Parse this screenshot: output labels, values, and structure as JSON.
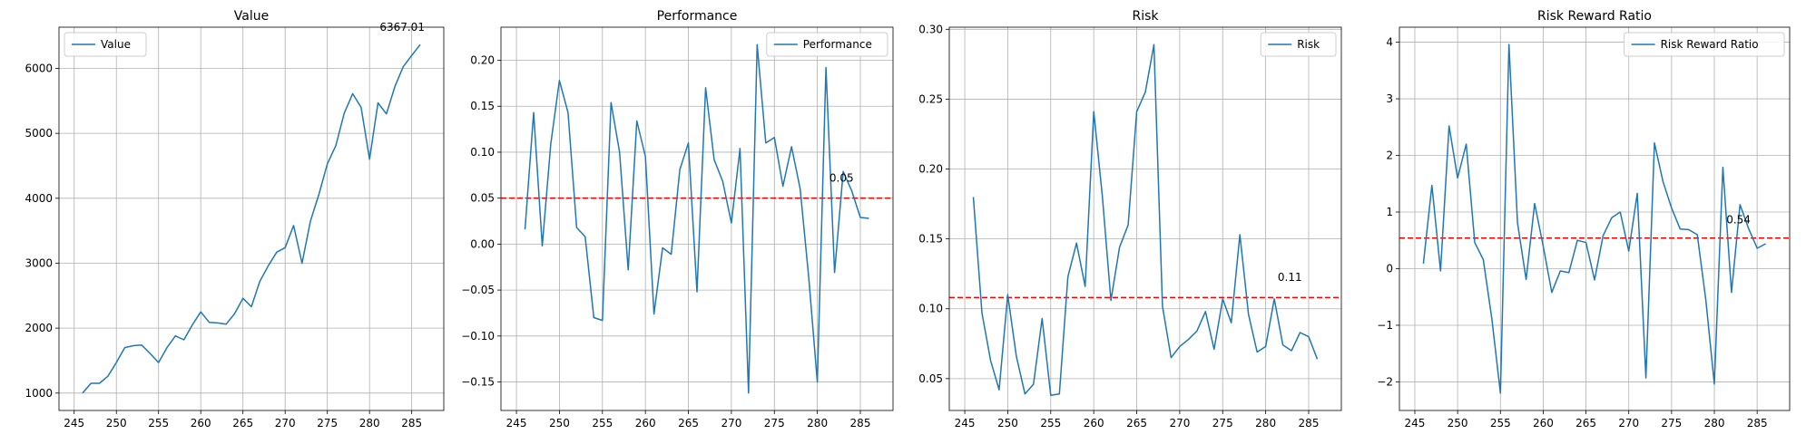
{
  "chart_data": [
    {
      "type": "line",
      "title": "Value",
      "xlabel": "",
      "ylabel": "",
      "x": [
        246,
        247,
        248,
        249,
        250,
        251,
        252,
        253,
        254,
        255,
        256,
        257,
        258,
        259,
        260,
        261,
        262,
        263,
        264,
        265,
        266,
        267,
        268,
        269,
        270,
        271,
        272,
        273,
        274,
        275,
        276,
        277,
        278,
        279,
        280,
        281,
        282,
        283,
        284,
        285,
        286
      ],
      "series": [
        {
          "name": "Value",
          "values": [
            1000,
            1150,
            1150,
            1260,
            1470,
            1700,
            1730,
            1740,
            1610,
            1470,
            1700,
            1880,
            1820,
            2050,
            2250,
            2090,
            2080,
            2060,
            2220,
            2460,
            2330,
            2720,
            2960,
            3170,
            3240,
            3580,
            3000,
            3650,
            4060,
            4530,
            4810,
            5310,
            5610,
            5400,
            4600,
            5470,
            5300,
            5720,
            6030,
            6200,
            6367.01
          ]
        }
      ],
      "xlim": [
        243.2,
        288.8
      ],
      "ylim": [
        732,
        6635
      ],
      "xticks": [
        245,
        250,
        255,
        260,
        265,
        270,
        275,
        280,
        285
      ],
      "yticks": [
        1000,
        2000,
        3000,
        4000,
        5000,
        6000
      ],
      "hline": null,
      "annotation": {
        "text": "6367.01",
        "x": 281.2,
        "y": 6580
      },
      "legend": "upper left",
      "grid": true
    },
    {
      "type": "line",
      "title": "Performance",
      "xlabel": "",
      "ylabel": "",
      "x": [
        246,
        247,
        248,
        249,
        250,
        251,
        252,
        253,
        254,
        255,
        256,
        257,
        258,
        259,
        260,
        261,
        262,
        263,
        264,
        265,
        266,
        267,
        268,
        269,
        270,
        271,
        272,
        273,
        274,
        275,
        276,
        277,
        278,
        279,
        280,
        281,
        282,
        283,
        284,
        285,
        286
      ],
      "series": [
        {
          "name": "Performance",
          "values": [
            0.016,
            0.143,
            -0.002,
            0.109,
            0.178,
            0.143,
            0.018,
            0.008,
            -0.08,
            -0.083,
            0.154,
            0.1,
            -0.028,
            0.134,
            0.095,
            -0.076,
            -0.004,
            -0.011,
            0.081,
            0.11,
            -0.052,
            0.17,
            0.092,
            0.068,
            0.023,
            0.104,
            -0.162,
            0.217,
            0.11,
            0.116,
            0.063,
            0.106,
            0.06,
            -0.037,
            -0.15,
            0.192,
            -0.031,
            0.079,
            0.058,
            0.029,
            0.028
          ]
        }
      ],
      "xlim": [
        243.2,
        288.8
      ],
      "ylim": [
        -0.181,
        0.236
      ],
      "xticks": [
        245,
        250,
        255,
        260,
        265,
        270,
        275,
        280,
        285
      ],
      "yticks": [
        -0.15,
        -0.1,
        -0.05,
        0.0,
        0.05,
        0.1,
        0.15,
        0.2
      ],
      "ytick_labels": [
        "−0.15",
        "−0.10",
        "−0.05",
        "0.00",
        "0.05",
        "0.10",
        "0.15",
        "0.20"
      ],
      "hline": {
        "y": 0.05,
        "color": "#ff0000",
        "style": "dashed"
      },
      "annotation": {
        "text": "0.05",
        "x": 281.4,
        "y": 0.068
      },
      "legend": "upper right",
      "grid": true
    },
    {
      "type": "line",
      "title": "Risk",
      "xlabel": "",
      "ylabel": "",
      "x": [
        246,
        247,
        248,
        249,
        250,
        251,
        252,
        253,
        254,
        255,
        256,
        257,
        258,
        259,
        260,
        261,
        262,
        263,
        264,
        265,
        266,
        267,
        268,
        269,
        270,
        271,
        272,
        273,
        274,
        275,
        276,
        277,
        278,
        279,
        280,
        281,
        282,
        283,
        284,
        285,
        286
      ],
      "series": [
        {
          "name": "Risk",
          "values": [
            0.18,
            0.097,
            0.063,
            0.042,
            0.11,
            0.066,
            0.039,
            0.046,
            0.093,
            0.038,
            0.039,
            0.123,
            0.147,
            0.116,
            0.241,
            0.181,
            0.106,
            0.144,
            0.16,
            0.241,
            0.255,
            0.289,
            0.102,
            0.065,
            0.073,
            0.078,
            0.084,
            0.098,
            0.071,
            0.107,
            0.09,
            0.153,
            0.096,
            0.069,
            0.073,
            0.107,
            0.074,
            0.07,
            0.083,
            0.08,
            0.064
          ]
        }
      ],
      "xlim": [
        243.2,
        288.8
      ],
      "ylim": [
        0.0272,
        0.3015
      ],
      "xticks": [
        245,
        250,
        255,
        260,
        265,
        270,
        275,
        280,
        285
      ],
      "yticks": [
        0.05,
        0.1,
        0.15,
        0.2,
        0.25,
        0.3
      ],
      "hline": {
        "y": 0.108,
        "color": "#ff0000",
        "style": "dashed"
      },
      "annotation": {
        "text": "0.11",
        "x": 281.4,
        "y": 0.12
      },
      "legend": "upper right",
      "grid": true
    },
    {
      "type": "line",
      "title": "Risk Reward Ratio",
      "xlabel": "",
      "ylabel": "",
      "x": [
        246,
        247,
        248,
        249,
        250,
        251,
        252,
        253,
        254,
        255,
        256,
        257,
        258,
        259,
        260,
        261,
        262,
        263,
        264,
        265,
        266,
        267,
        268,
        269,
        270,
        271,
        272,
        273,
        274,
        275,
        276,
        277,
        278,
        279,
        280,
        281,
        282,
        283,
        284,
        285,
        286
      ],
      "series": [
        {
          "name": "Risk Reward Ratio",
          "values": [
            0.09,
            1.47,
            -0.04,
            2.52,
            1.6,
            2.2,
            0.46,
            0.16,
            -0.88,
            -2.2,
            3.96,
            0.81,
            -0.19,
            1.15,
            0.4,
            -0.42,
            -0.04,
            -0.07,
            0.5,
            0.46,
            -0.2,
            0.58,
            0.9,
            1.0,
            0.31,
            1.33,
            -1.93,
            2.22,
            1.54,
            1.07,
            0.7,
            0.69,
            0.6,
            -0.55,
            -2.04,
            1.79,
            -0.42,
            1.13,
            0.71,
            0.36,
            0.44
          ]
        }
      ],
      "xlim": [
        243.2,
        288.8
      ],
      "ylim": [
        -2.505,
        4.265
      ],
      "xticks": [
        245,
        250,
        255,
        260,
        265,
        270,
        275,
        280,
        285
      ],
      "yticks": [
        -2,
        -1,
        0,
        1,
        2,
        3,
        4
      ],
      "ytick_labels": [
        "−2",
        "−1",
        "0",
        "1",
        "2",
        "3",
        "4"
      ],
      "hline": {
        "y": 0.54,
        "color": "#ff0000",
        "style": "dashed"
      },
      "annotation": {
        "text": "0.54",
        "x": 281.4,
        "y": 0.8
      },
      "legend": "upper right",
      "grid": true
    }
  ],
  "colors": {
    "line": "#1f77b4",
    "hline": "#ff0000",
    "grid": "#b0b0b0"
  }
}
